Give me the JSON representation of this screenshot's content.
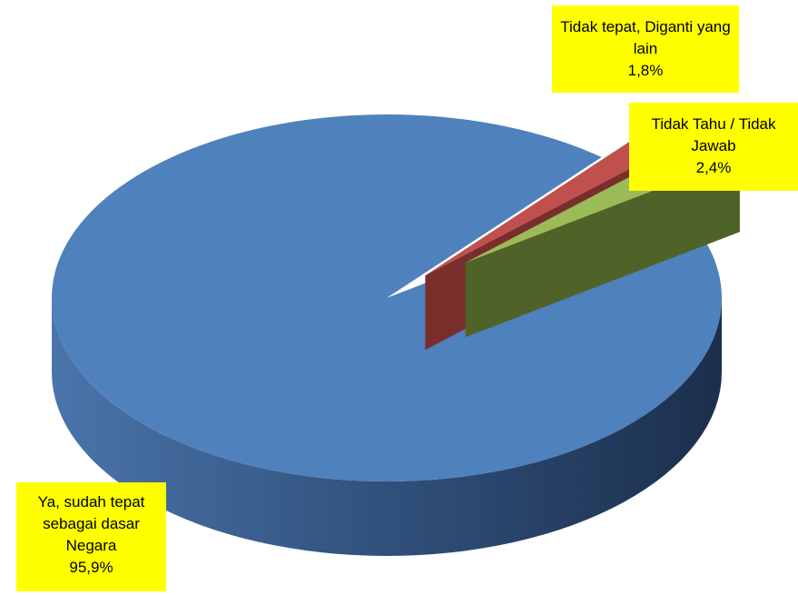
{
  "chart_data": {
    "type": "pie",
    "categories": [
      "Ya, sudah tepat sebagai dasar Negara",
      "Tidak tepat, Diganti yang lain",
      "Tidak Tahu / Tidak Jawab"
    ],
    "values": [
      95.9,
      1.8,
      2.4
    ],
    "value_labels": [
      "95,9%",
      "1,8%",
      "2,4%"
    ],
    "colors": [
      "#4f81bd",
      "#c0504d",
      "#9bbb59"
    ]
  }
}
